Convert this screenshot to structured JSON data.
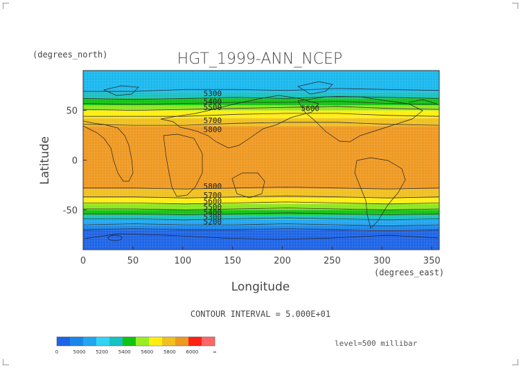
{
  "chart_data": {
    "type": "heatmap",
    "title": "HGT_1999-ANN_NCEP",
    "xlabel": "Longitude",
    "ylabel": "Latitude",
    "x_units": "(degrees_east)",
    "y_units": "(degrees_north)",
    "xlim": [
      0,
      357.5
    ],
    "ylim": [
      -90,
      90
    ],
    "x_ticks": [
      0,
      50,
      100,
      150,
      200,
      250,
      300,
      350
    ],
    "y_ticks": [
      50,
      0,
      -50
    ],
    "footer": "CONTOUR INTERVAL = 5.000E+01",
    "level_label": "level=500 millibar",
    "colorbar": {
      "colors": [
        "#1e64e6",
        "#1a86ea",
        "#22a6f0",
        "#33d3f5",
        "#16c2c2",
        "#12c412",
        "#99ee22",
        "#ffee11",
        "#f0c020",
        "#ee9922",
        "#ff2211",
        "#ff6666"
      ],
      "tick_labels": [
        "0",
        "5000",
        "5200",
        "5400",
        "5600",
        "5800",
        "6000",
        "∞"
      ]
    },
    "bands": [
      {
        "lat_top": 90,
        "lat_bottom": 68,
        "value": 5200,
        "color": "#1ab8ee"
      },
      {
        "lat_top": 68,
        "lat_bottom": 62,
        "value": 5350,
        "color": "#16c2c2"
      },
      {
        "lat_top": 62,
        "lat_bottom": 55,
        "value": 5450,
        "color": "#12c412"
      },
      {
        "lat_top": 55,
        "lat_bottom": 50,
        "value": 5550,
        "color": "#8de61e"
      },
      {
        "lat_top": 50,
        "lat_bottom": 42,
        "value": 5650,
        "color": "#ffee11"
      },
      {
        "lat_top": 42,
        "lat_bottom": 34,
        "value": 5750,
        "color": "#f0c020"
      },
      {
        "lat_top": 34,
        "lat_bottom": -29,
        "value": 5850,
        "color": "#ee9922"
      },
      {
        "lat_top": -29,
        "lat_bottom": -38,
        "value": 5750,
        "color": "#f0c020"
      },
      {
        "lat_top": -38,
        "lat_bottom": -44,
        "value": 5650,
        "color": "#ffee11"
      },
      {
        "lat_top": -44,
        "lat_bottom": -50,
        "value": 5550,
        "color": "#8de61e"
      },
      {
        "lat_top": -50,
        "lat_bottom": -55,
        "value": 5450,
        "color": "#12c412"
      },
      {
        "lat_top": -55,
        "lat_bottom": -60,
        "value": 5350,
        "color": "#16c2c2"
      },
      {
        "lat_top": -60,
        "lat_bottom": -66,
        "value": 5250,
        "color": "#22a6f0"
      },
      {
        "lat_top": -66,
        "lat_bottom": -70,
        "value": 5150,
        "color": "#1a86ea"
      },
      {
        "lat_top": -70,
        "lat_bottom": -90,
        "value": 5050,
        "color": "#1e64e6"
      }
    ],
    "contour_lines": [
      {
        "value": 5300,
        "lats": [
          69,
          69,
          71,
          71,
          70,
          72,
          71,
          70
        ]
      },
      {
        "value": 5400,
        "lats": [
          62,
          61,
          62,
          63,
          62,
          64,
          63,
          62
        ]
      },
      {
        "value": 5500,
        "lats": [
          57,
          56,
          57,
          58,
          58,
          59,
          57,
          56
        ]
      },
      {
        "value": 5600,
        "lats": [
          51,
          50,
          51,
          52,
          53,
          54,
          52,
          51
        ]
      },
      {
        "value": 5700,
        "lats": [
          44,
          44,
          44,
          46,
          47,
          47,
          45,
          44
        ]
      },
      {
        "value": 5800,
        "lats": [
          36,
          35,
          35,
          37,
          38,
          38,
          36,
          35
        ]
      },
      {
        "value": 5800,
        "lats": [
          -28,
          -28,
          -29,
          -28,
          -27,
          -28,
          -29,
          -28
        ]
      },
      {
        "value": 5700,
        "lats": [
          -37,
          -37,
          -38,
          -37,
          -36,
          -37,
          -38,
          -37
        ]
      },
      {
        "value": 5600,
        "lats": [
          -43,
          -43,
          -44,
          -43,
          -42,
          -43,
          -44,
          -43
        ]
      },
      {
        "value": 5500,
        "lats": [
          -49,
          -49,
          -50,
          -49,
          -48,
          -49,
          -50,
          -49
        ]
      },
      {
        "value": 5400,
        "lats": [
          -54,
          -54,
          -55,
          -54,
          -53,
          -54,
          -55,
          -54
        ]
      },
      {
        "value": 5300,
        "lats": [
          -59,
          -59,
          -60,
          -59,
          -58,
          -59,
          -60,
          -59
        ]
      },
      {
        "value": 5200,
        "lats": [
          -65,
          -64,
          -65,
          -65,
          -64,
          -65,
          -66,
          -65
        ]
      },
      {
        "value": 5100,
        "lats": [
          -70,
          -69,
          -70,
          -70,
          -69,
          -70,
          -71,
          -70
        ]
      }
    ],
    "contour_labels": [
      {
        "text": "5300",
        "lon": 130,
        "lat": 67
      },
      {
        "text": "5400",
        "lon": 130,
        "lat": 59
      },
      {
        "text": "5500",
        "lon": 130,
        "lat": 53
      },
      {
        "text": "5600",
        "lon": 228,
        "lat": 52
      },
      {
        "text": "5700",
        "lon": 130,
        "lat": 40
      },
      {
        "text": "5800",
        "lon": 130,
        "lat": 31
      },
      {
        "text": "5800",
        "lon": 130,
        "lat": -26
      },
      {
        "text": "5700",
        "lon": 130,
        "lat": -35
      },
      {
        "text": "5600",
        "lon": 130,
        "lat": -41
      },
      {
        "text": "5500",
        "lon": 130,
        "lat": -47
      },
      {
        "text": "5400",
        "lon": 130,
        "lat": -52
      },
      {
        "text": "5300",
        "lon": 130,
        "lat": -57
      },
      {
        "text": "5200",
        "lon": 130,
        "lat": -62
      }
    ],
    "grid": true,
    "legend": "bottom-left"
  }
}
